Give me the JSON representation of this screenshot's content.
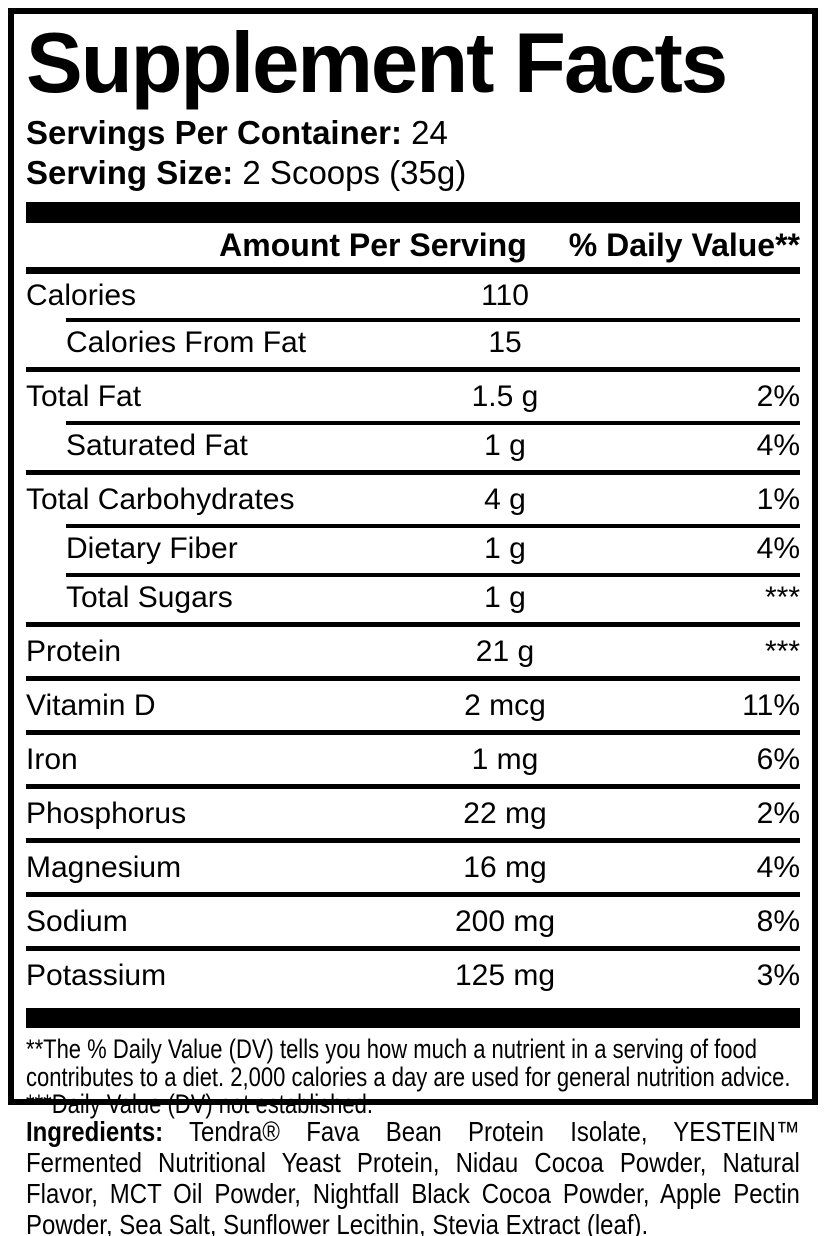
{
  "label": {
    "title": "Supplement Facts",
    "servings_per_container": {
      "label": "Servings Per Container:",
      "value": "24"
    },
    "serving_size": {
      "label": "Serving Size:",
      "value": "2 Scoops (35g)"
    },
    "columns": {
      "amount": "Amount Per Serving",
      "daily_value": "% Daily Value**"
    },
    "rows": [
      {
        "name": "Calories",
        "amount": "110",
        "dv": "",
        "indent": false
      },
      {
        "name": "Calories From Fat",
        "amount": "15",
        "dv": "",
        "indent": true
      },
      {
        "name": "Total Fat",
        "amount": "1.5 g",
        "dv": "2%",
        "indent": false
      },
      {
        "name": "Saturated Fat",
        "amount": "1 g",
        "dv": "4%",
        "indent": true
      },
      {
        "name": "Total Carbohydrates",
        "amount": "4 g",
        "dv": "1%",
        "indent": false
      },
      {
        "name": "Dietary Fiber",
        "amount": "1 g",
        "dv": "4%",
        "indent": true
      },
      {
        "name": "Total Sugars",
        "amount": "1 g",
        "dv": "***",
        "indent": true
      },
      {
        "name": "Protein",
        "amount": "21 g",
        "dv": "***",
        "indent": false
      },
      {
        "name": "Vitamin D",
        "amount": "2 mcg",
        "dv": "11%",
        "indent": false
      },
      {
        "name": "Iron",
        "amount": "1 mg",
        "dv": "6%",
        "indent": false
      },
      {
        "name": "Phosphorus",
        "amount": "22 mg",
        "dv": "2%",
        "indent": false
      },
      {
        "name": "Magnesium",
        "amount": "16 mg",
        "dv": "4%",
        "indent": false
      },
      {
        "name": "Sodium",
        "amount": "200 mg",
        "dv": "8%",
        "indent": false
      },
      {
        "name": "Potassium",
        "amount": "125 mg",
        "dv": "3%",
        "indent": false
      }
    ],
    "footnotes": [
      "**The % Daily Value (DV) tells you how much a nutrient in a serving of food contributes to a diet. 2,000 calories a day are used for general nutrition advice.",
      "***Daily Value (DV) not established."
    ],
    "ingredients": {
      "label": "Ingredients:",
      "text": "Tendra® Fava Bean Protein Isolate, YESTEIN™ Fermented Nutritional Yeast Protein, Nidau Cocoa Powder, Natural Flavor, MCT Oil Powder, Nightfall Black Cocoa Powder, Apple Pectin Powder, Sea Salt, Sunflower Lecithin, Stevia Extract (leaf)."
    },
    "colors": {
      "text": "#000000",
      "background": "#ffffff"
    }
  }
}
